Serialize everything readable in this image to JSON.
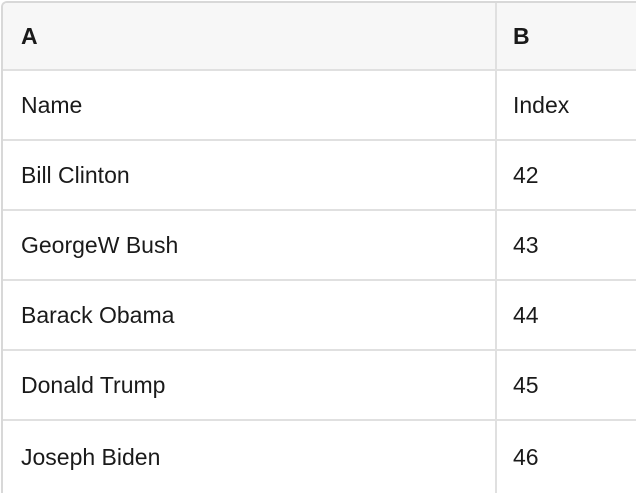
{
  "table": {
    "header": {
      "a": "A",
      "b": "B"
    },
    "rows": [
      {
        "a": "Name",
        "b": "Index"
      },
      {
        "a": "Bill Clinton",
        "b": "42"
      },
      {
        "a": "GeorgeW Bush",
        "b": "43"
      },
      {
        "a": "Barack Obama",
        "b": "44"
      },
      {
        "a": "Donald Trump",
        "b": "45"
      },
      {
        "a": "Joseph Biden",
        "b": "46"
      }
    ],
    "colors": {
      "header_background": "#f7f7f7",
      "row_background": "#ffffff",
      "grid_border": "#e0e0e0",
      "outer_border": "#d8d8d8",
      "page_background": "#ffffff",
      "text": "#1a1a1a"
    }
  }
}
